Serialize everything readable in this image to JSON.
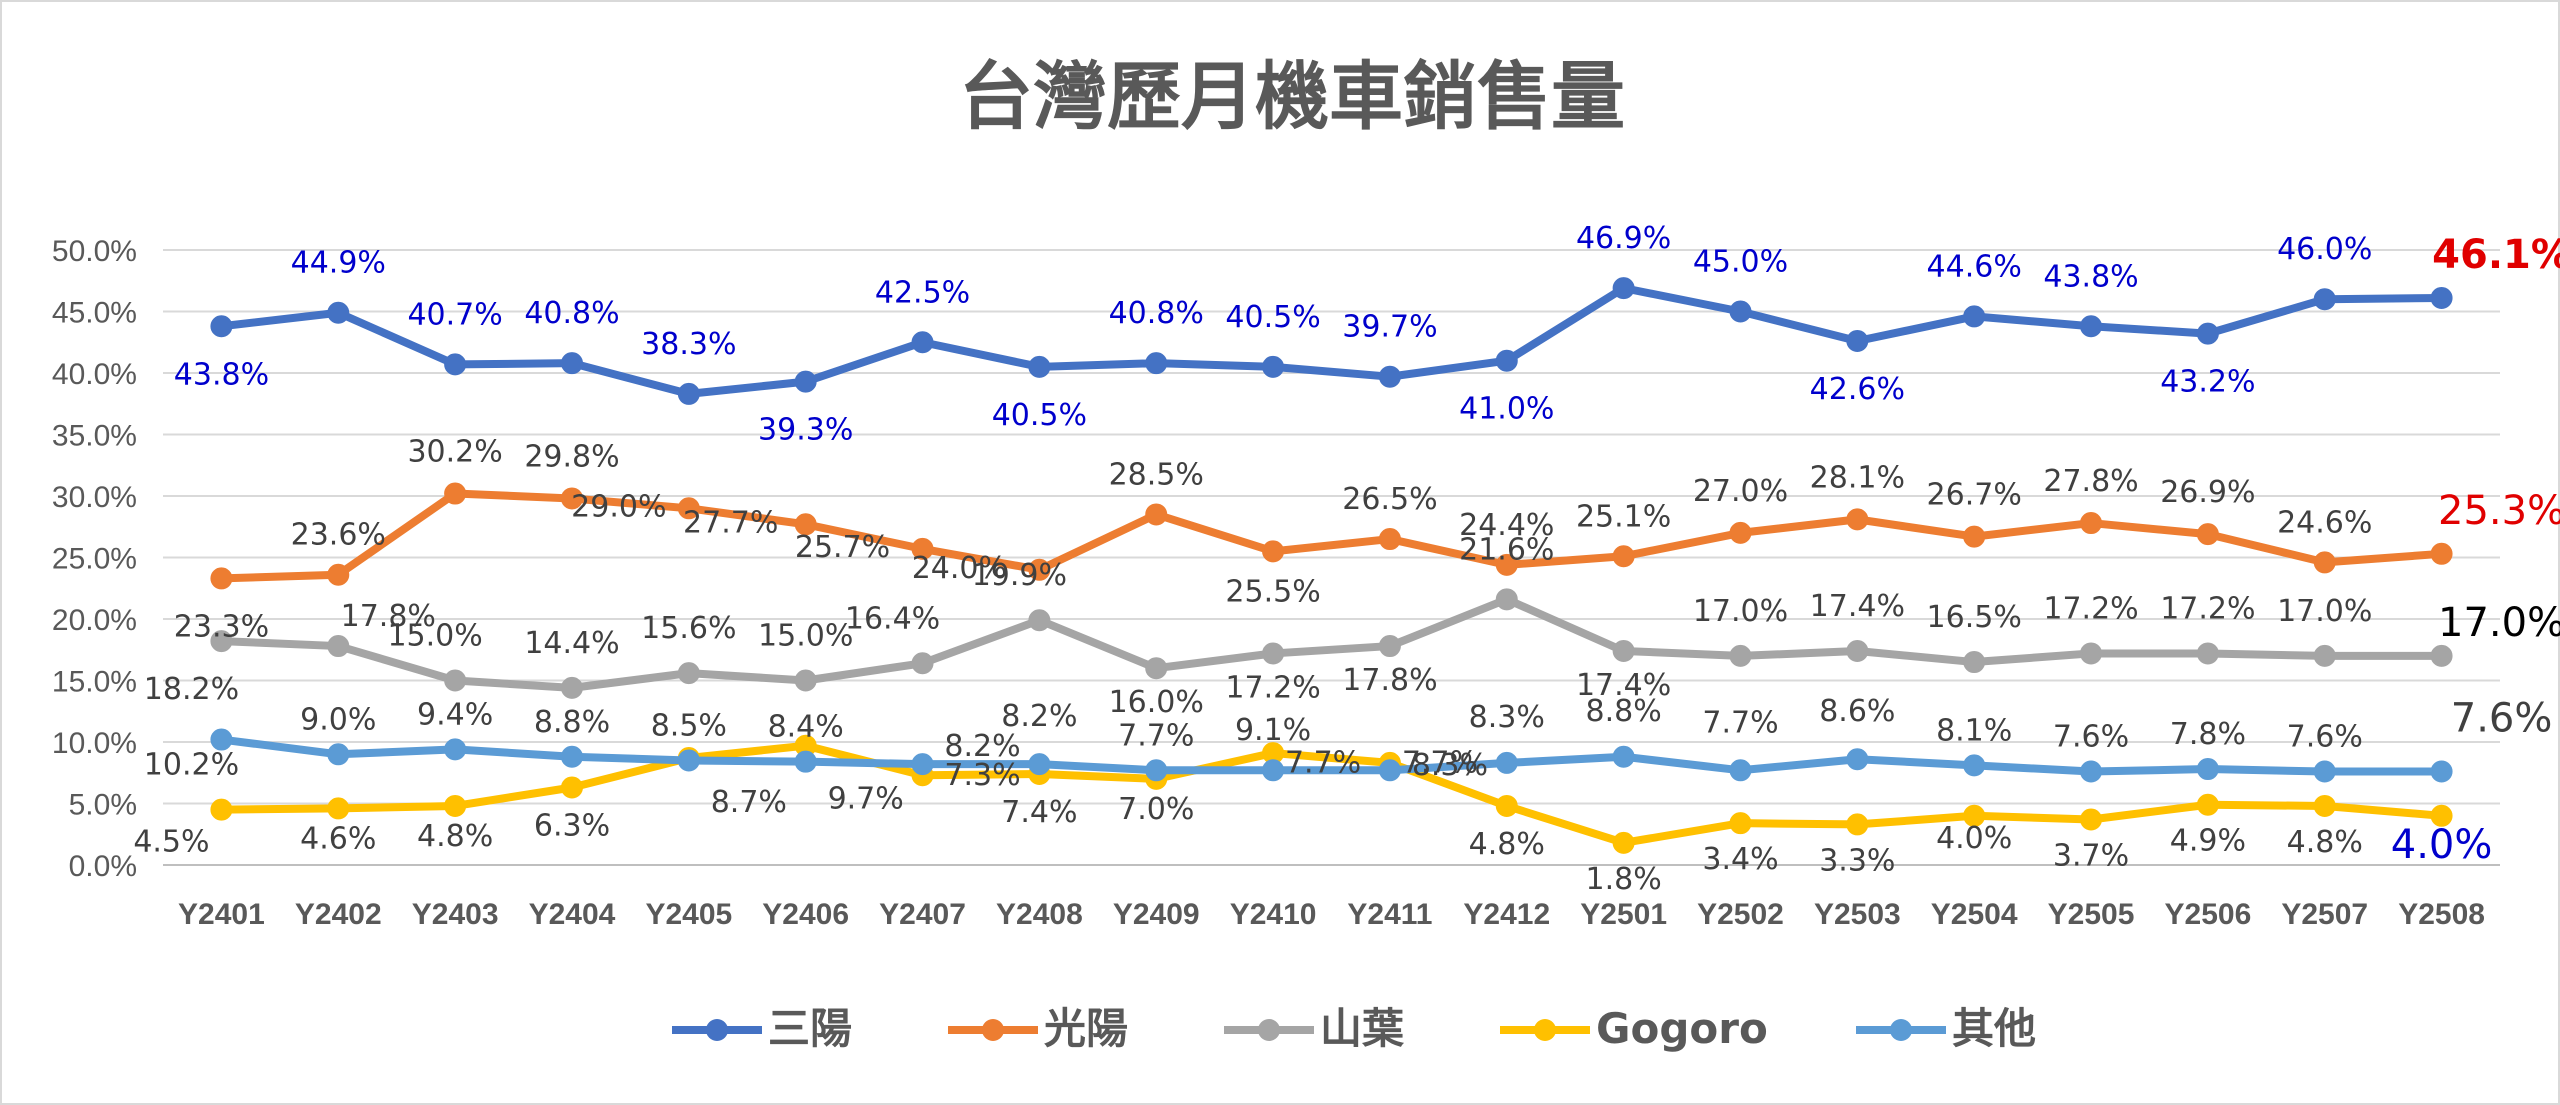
{
  "chart_data": {
    "type": "line",
    "title": "台灣歷月機車銷售量",
    "categories": [
      "Y2401",
      "Y2402",
      "Y2403",
      "Y2404",
      "Y2405",
      "Y2406",
      "Y2407",
      "Y2408",
      "Y2409",
      "Y2410",
      "Y2411",
      "Y2412",
      "Y2501",
      "Y2502",
      "Y2503",
      "Y2504",
      "Y2505",
      "Y2506",
      "Y2507",
      "Y2508"
    ],
    "yticks": [
      "0.0%",
      "5.0%",
      "10.0%",
      "15.0%",
      "20.0%",
      "25.0%",
      "30.0%",
      "35.0%",
      "40.0%",
      "45.0%",
      "50.0%"
    ],
    "ylim": [
      0,
      50
    ],
    "grid": true,
    "legend_position": "bottom",
    "series": [
      {
        "name": "三陽",
        "color": "#4472C4",
        "label_color": "#0000CC",
        "values": [
          43.8,
          44.9,
          40.7,
          40.8,
          38.3,
          39.3,
          42.5,
          40.5,
          40.8,
          40.5,
          39.7,
          41.0,
          46.9,
          45.0,
          42.6,
          44.6,
          43.8,
          43.2,
          46.0,
          46.1
        ],
        "labels": [
          "43.8%",
          "44.9%",
          "40.7%",
          "40.8%",
          "38.3%",
          "39.3%",
          "42.5%",
          "40.5%",
          "40.8%",
          "40.5%",
          "39.7%",
          "41.0%",
          "46.9%",
          "45.0%",
          "42.6%",
          "44.6%",
          "43.8%",
          "43.2%",
          "46.0%",
          "46.1%"
        ]
      },
      {
        "name": "光陽",
        "color": "#ED7D31",
        "label_color": "#404040",
        "values": [
          23.3,
          23.6,
          30.2,
          29.8,
          29.0,
          27.7,
          25.7,
          24.0,
          28.5,
          25.5,
          26.5,
          24.4,
          25.1,
          27.0,
          28.1,
          26.7,
          27.8,
          26.9,
          24.6,
          25.3
        ],
        "labels": [
          "23.3%",
          "23.6%",
          "30.2%",
          "29.8%",
          "29.0%",
          "27.7%",
          "25.7%",
          "24.0%",
          "28.5%",
          "25.5%",
          "26.5%",
          "24.4%",
          "25.1%",
          "27.0%",
          "28.1%",
          "26.7%",
          "27.8%",
          "26.9%",
          "24.6%",
          "25.3%"
        ]
      },
      {
        "name": "山葉",
        "color": "#A5A5A5",
        "label_color": "#404040",
        "values": [
          18.2,
          17.8,
          15.0,
          14.4,
          15.6,
          15.0,
          16.4,
          19.9,
          16.0,
          17.2,
          17.8,
          21.6,
          17.4,
          17.0,
          17.4,
          16.5,
          17.2,
          17.2,
          17.0,
          17.0
        ],
        "labels": [
          "18.2%",
          "17.8%",
          "15.0%",
          "14.4%",
          "15.6%",
          "15.0%",
          "16.4%",
          "19.9%",
          "16.0%",
          "17.2%",
          "17.8%",
          "21.6%",
          "17.4%",
          "17.0%",
          "17.4%",
          "16.5%",
          "17.2%",
          "17.2%",
          "17.0%",
          "17.0%"
        ]
      },
      {
        "name": "Gogoro",
        "color": "#FFC000",
        "label_color": "#404040",
        "values": [
          4.5,
          4.6,
          4.8,
          6.3,
          8.7,
          9.7,
          7.3,
          7.4,
          7.0,
          9.1,
          8.3,
          4.8,
          1.8,
          3.4,
          3.3,
          4.0,
          3.7,
          4.9,
          4.8,
          4.0
        ],
        "labels": [
          "4.5%",
          "4.6%",
          "4.8%",
          "6.3%",
          "8.7%",
          "9.7%",
          "7.3%",
          "7.4%",
          "7.0%",
          "9.1%",
          "8.3%",
          "4.8%",
          "1.8%",
          "3.4%",
          "3.3%",
          "4.0%",
          "3.7%",
          "4.9%",
          "4.8%",
          "4.0%"
        ]
      },
      {
        "name": "其他",
        "color": "#5B9BD5",
        "label_color": "#404040",
        "values": [
          10.2,
          9.0,
          9.4,
          8.8,
          8.5,
          8.4,
          8.2,
          8.2,
          7.7,
          7.7,
          7.7,
          8.3,
          8.8,
          7.7,
          8.6,
          8.1,
          7.6,
          7.8,
          7.6,
          7.6
        ],
        "labels": [
          "10.2%",
          "9.0%",
          "9.4%",
          "8.8%",
          "8.5%",
          "8.4%",
          "8.2%",
          "8.2%",
          "7.7%",
          "7.7%",
          "7.7%",
          "8.3%",
          "8.8%",
          "7.7%",
          "8.6%",
          "8.1%",
          "7.6%",
          "7.8%",
          "7.6%",
          "7.6%"
        ]
      }
    ],
    "last_label_colors": [
      "#E00000",
      "#E00000",
      "#000000",
      "#0000CC",
      "#404040"
    ]
  }
}
